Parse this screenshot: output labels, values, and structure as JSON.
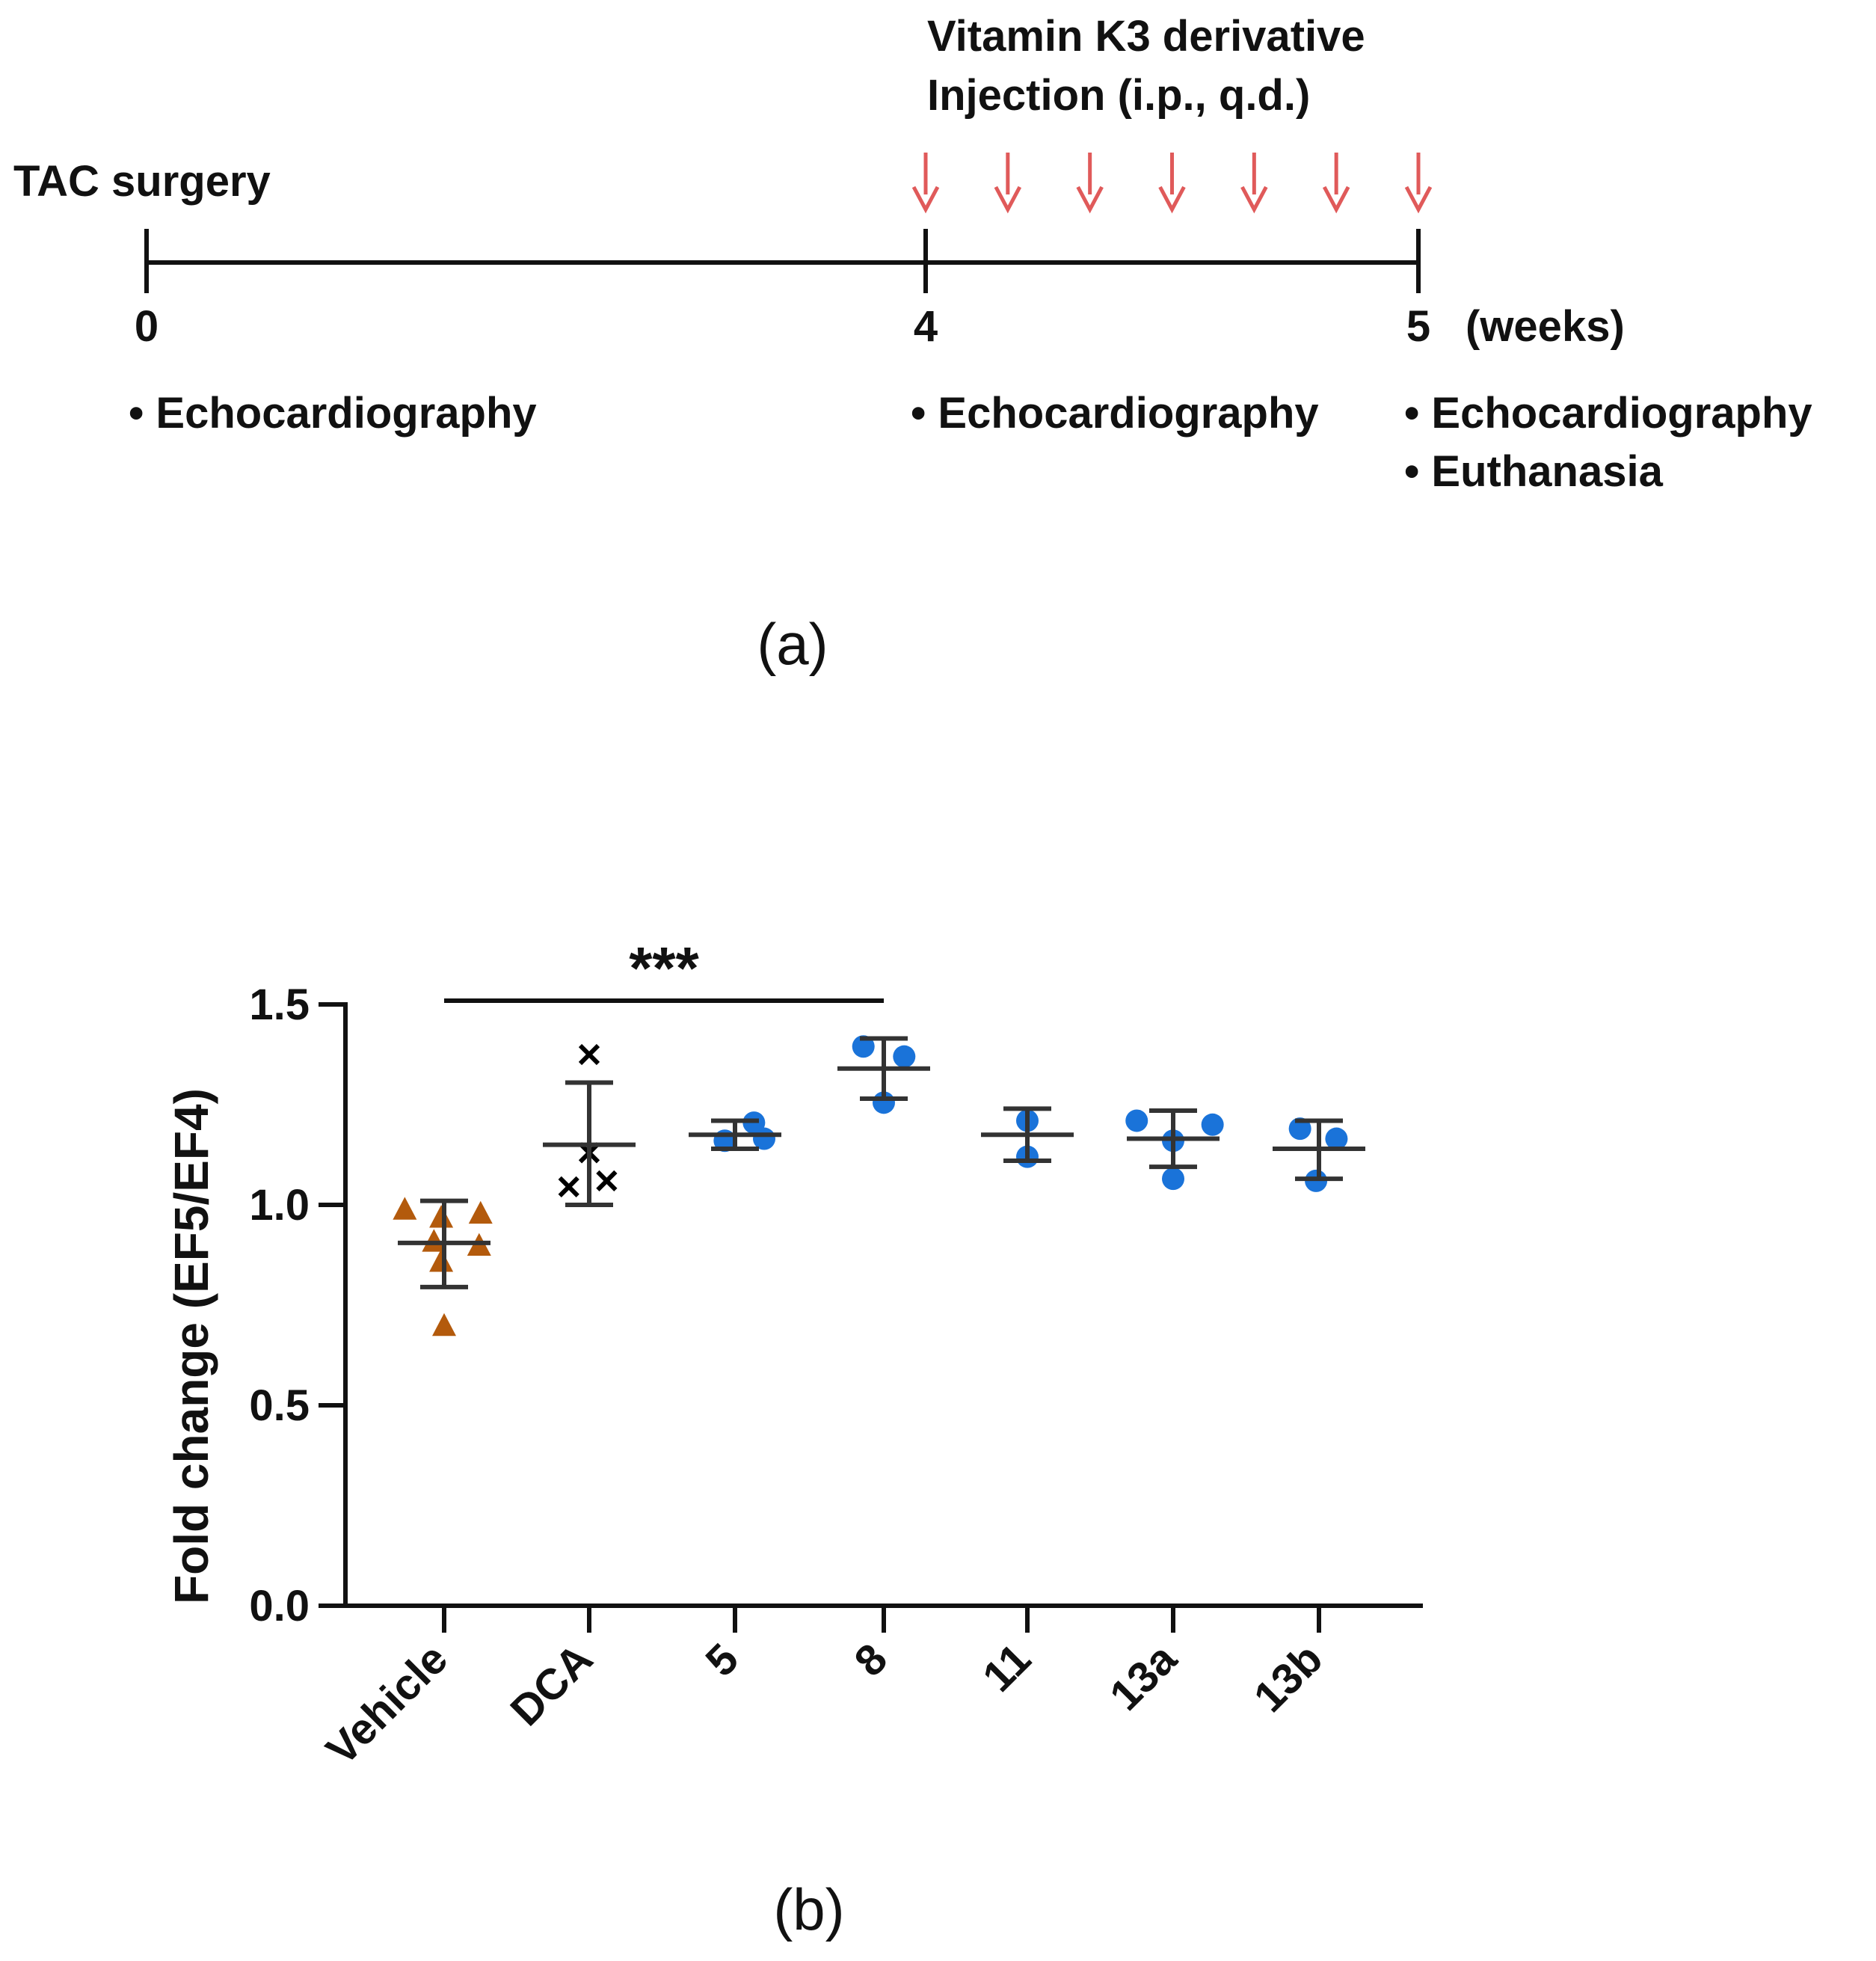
{
  "panel_a": {
    "treatment_label_line1": "Vitamin K3 derivative",
    "treatment_label_line2": "Injection (i.p., q.d.)",
    "surgery_label": "TAC surgery",
    "timepoints": [
      {
        "value": 0,
        "label": "0"
      },
      {
        "value": 4,
        "label": "4"
      },
      {
        "value": 5,
        "label": "5"
      }
    ],
    "unit_label": "(weeks)",
    "injection_count": 7,
    "arrow_color": "#e05a5a",
    "events_week0": [
      "• Echocardiography"
    ],
    "events_week4": [
      "• Echocardiography"
    ],
    "events_week5": [
      "• Echocardiography",
      "• Euthanasia"
    ],
    "caption": "(a)"
  },
  "panel_b": {
    "caption": "(b)",
    "significance_label": "***",
    "significance_from": "Vehicle",
    "significance_to": "8"
  },
  "chart_data": {
    "type": "scatter",
    "title": "",
    "xlabel": "",
    "ylabel": "Fold change (EF5/EF4)",
    "ylim": [
      0,
      1.5
    ],
    "yticks": [
      0.0,
      0.5,
      1.0,
      1.5
    ],
    "ytick_labels": [
      "0.0",
      "0.5",
      "1.0",
      "1.5"
    ],
    "categories": [
      "Vehicle",
      "DCA",
      "5",
      "8",
      "11",
      "13a",
      "13b"
    ],
    "groups": [
      {
        "name": "Vehicle",
        "marker": "triangle",
        "color": "#b35a0c",
        "mean": 0.905,
        "sd_low": 0.795,
        "sd_high": 1.01,
        "points": [
          [
            -0.27,
            0.99
          ],
          [
            -0.02,
            0.97
          ],
          [
            0.25,
            0.98
          ],
          [
            -0.07,
            0.91
          ],
          [
            0.24,
            0.9
          ],
          [
            -0.02,
            0.86
          ],
          [
            0.0,
            0.7
          ]
        ]
      },
      {
        "name": "DCA",
        "marker": "x",
        "color": "#000000",
        "mean": 1.15,
        "sd_low": 1.0,
        "sd_high": 1.305,
        "points": [
          [
            0.0,
            1.375
          ],
          [
            0.0,
            1.13
          ],
          [
            -0.14,
            1.045
          ],
          [
            0.12,
            1.06
          ]
        ]
      },
      {
        "name": "5",
        "marker": "circle",
        "color": "#1a73d9",
        "mean": 1.175,
        "sd_low": 1.14,
        "sd_high": 1.21,
        "points": [
          [
            0.13,
            1.205
          ],
          [
            -0.07,
            1.16
          ],
          [
            0.2,
            1.165
          ]
        ]
      },
      {
        "name": "8",
        "marker": "circle",
        "color": "#1a73d9",
        "mean": 1.34,
        "sd_low": 1.265,
        "sd_high": 1.415,
        "points": [
          [
            -0.14,
            1.395
          ],
          [
            0.14,
            1.37
          ],
          [
            0.0,
            1.255
          ]
        ]
      },
      {
        "name": "11",
        "marker": "circle",
        "color": "#1a73d9",
        "mean": 1.175,
        "sd_low": 1.11,
        "sd_high": 1.24,
        "points": [
          [
            0.0,
            1.21
          ],
          [
            0.0,
            1.12
          ]
        ]
      },
      {
        "name": "13a",
        "marker": "circle",
        "color": "#1a73d9",
        "mean": 1.165,
        "sd_low": 1.095,
        "sd_high": 1.235,
        "points": [
          [
            -0.25,
            1.21
          ],
          [
            0.27,
            1.2
          ],
          [
            0.0,
            1.16
          ],
          [
            0.0,
            1.065
          ]
        ]
      },
      {
        "name": "13b",
        "marker": "circle",
        "color": "#1a73d9",
        "mean": 1.14,
        "sd_low": 1.065,
        "sd_high": 1.21,
        "points": [
          [
            -0.13,
            1.19
          ],
          [
            0.12,
            1.165
          ],
          [
            -0.02,
            1.06
          ]
        ]
      }
    ]
  }
}
